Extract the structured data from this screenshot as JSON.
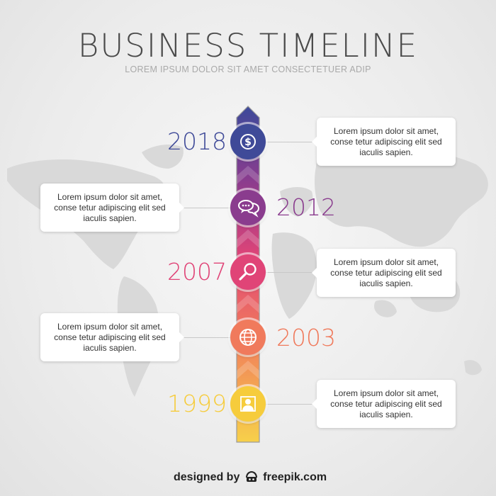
{
  "header": {
    "title": "BUSINESS TIMELINE",
    "subtitle": "LOREM IPSUM DOLOR SIT AMET CONSECTETUER ADIP"
  },
  "timeline": [
    {
      "year": "2018",
      "icon": "dollar-icon",
      "color": "#3f4a98",
      "text": "Lorem ipsum dolor sit amet, conse tetur adipiscing elit sed iaculis sapien."
    },
    {
      "year": "2012",
      "icon": "chat-bubbles-icon",
      "color": "#8a3c8e",
      "text": "Lorem ipsum dolor sit amet, conse tetur adipiscing elit sed iaculis sapien."
    },
    {
      "year": "2007",
      "icon": "magnifier-icon",
      "color": "#e04477",
      "text": "Lorem ipsum dolor sit amet, conse tetur adipiscing elit sed iaculis sapien."
    },
    {
      "year": "2003",
      "icon": "globe-icon",
      "color": "#f07a5c",
      "text": "Lorem ipsum dolor sit amet, conse tetur adipiscing elit sed iaculis sapien."
    },
    {
      "year": "1999",
      "icon": "user-icon",
      "color": "#f6cc3c",
      "text": "Lorem ipsum dolor sit amet, conse tetur adipiscing elit sed iaculis sapien."
    }
  ],
  "footer": {
    "prefix": "designed by",
    "brand": "freepik.com"
  }
}
